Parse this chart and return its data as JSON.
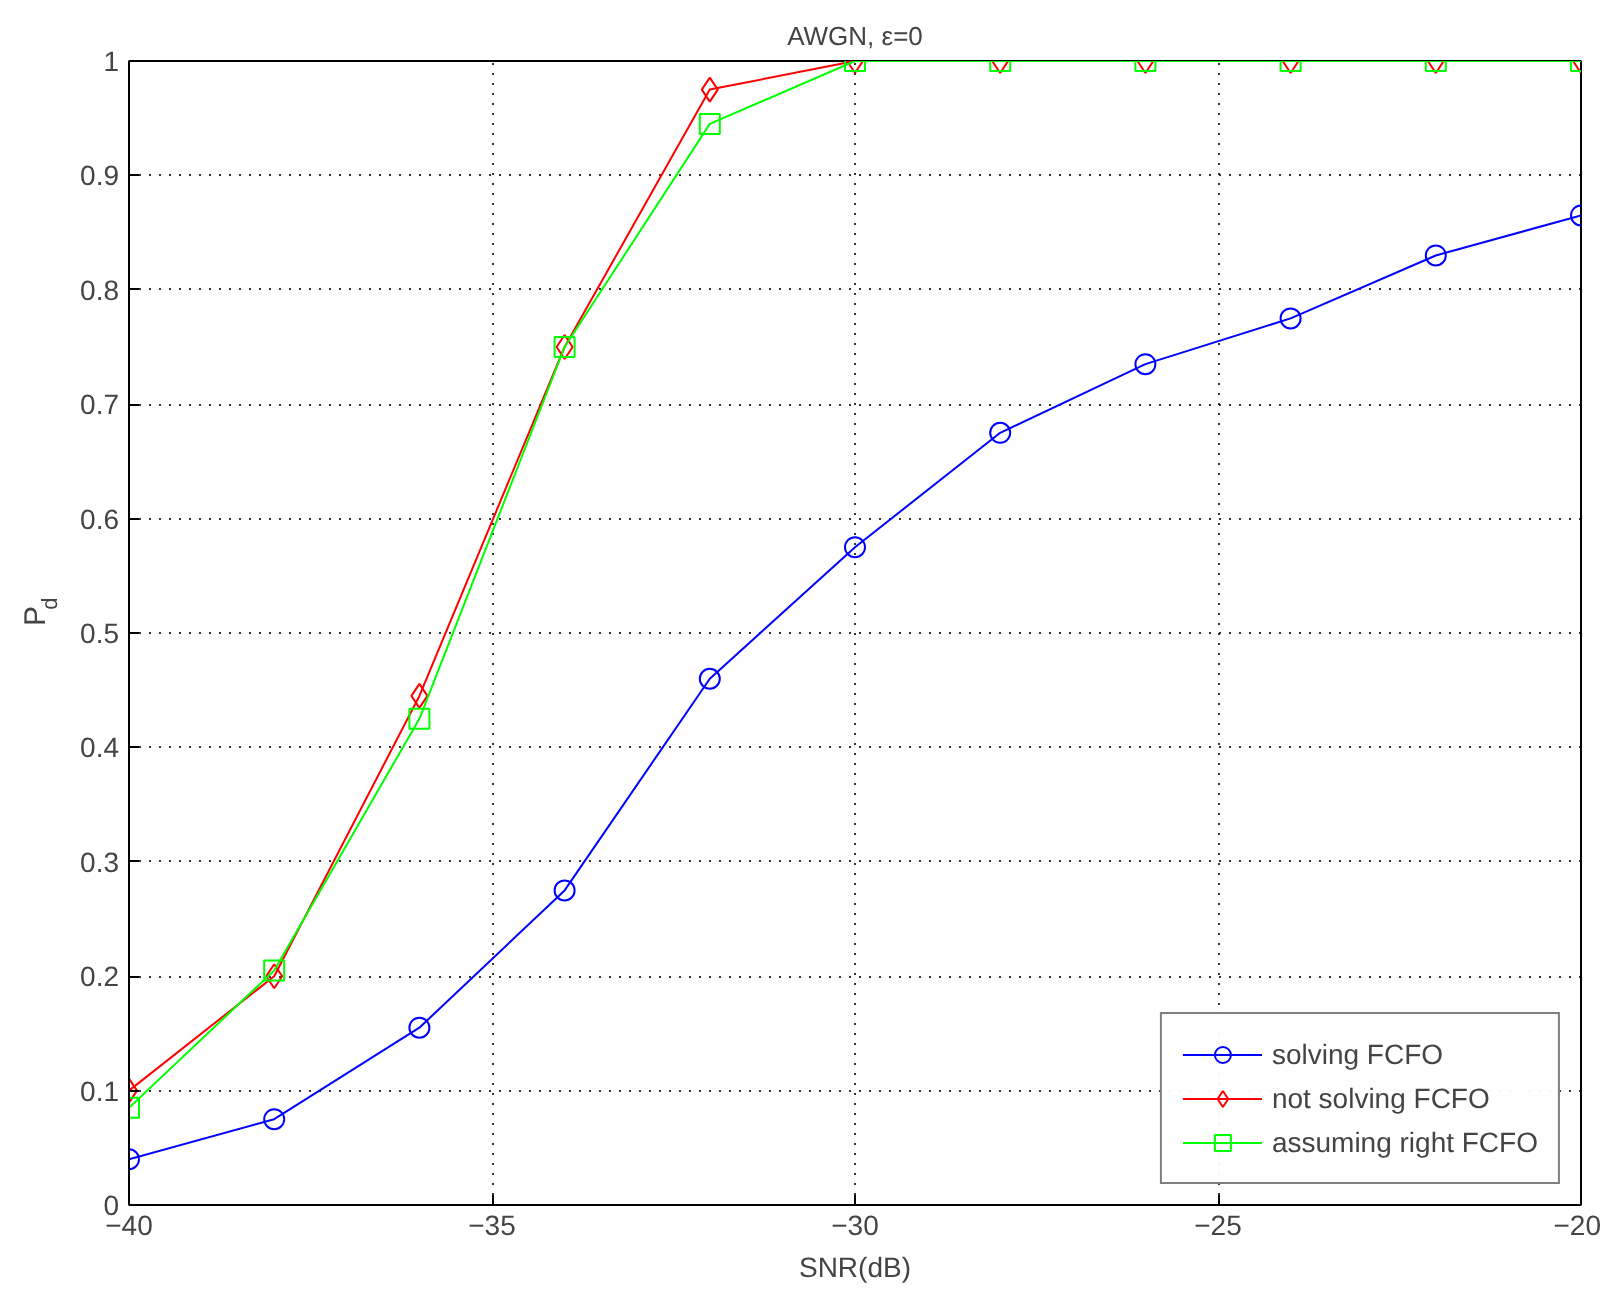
{
  "chart_data": {
    "type": "line",
    "title": "AWGN, ε=0",
    "xlabel": "SNR(dB)",
    "ylabel": "P$_{d}$",
    "x": [
      -40,
      -38,
      -36,
      -34,
      -32,
      -30,
      -28,
      -26,
      -24,
      -22,
      -20
    ],
    "series": [
      {
        "name": "solving FCFO",
        "color": "#0000ff",
        "marker": "circle",
        "values": [
          0.04,
          0.075,
          0.155,
          0.275,
          0.46,
          0.575,
          0.675,
          0.735,
          0.775,
          0.83,
          0.865
        ]
      },
      {
        "name": "not solving FCFO",
        "color": "#ff0000",
        "marker": "diamond",
        "values": [
          0.1,
          0.2,
          0.445,
          0.75,
          0.975,
          1,
          1,
          1,
          1,
          1,
          1
        ]
      },
      {
        "name": "assuming right FCFO",
        "color": "#00ff00",
        "marker": "square",
        "values": [
          0.085,
          0.205,
          0.425,
          0.75,
          0.945,
          1,
          1,
          1,
          1,
          1,
          1
        ]
      }
    ],
    "xlim": [
      -40,
      -20
    ],
    "xticks": [
      {
        "value": -40,
        "label": "−40"
      },
      {
        "value": -35,
        "label": "−35"
      },
      {
        "value": -30,
        "label": "−30"
      },
      {
        "value": -25,
        "label": "−25"
      },
      {
        "value": -20,
        "label": "−20"
      }
    ],
    "ylim": [
      0,
      1
    ],
    "yticks": [
      0,
      0.1,
      0.2,
      0.3,
      0.4,
      0.5,
      0.6,
      0.7,
      0.8,
      0.9,
      1
    ],
    "grid": true,
    "legend": "bottom right",
    "line_style": "solid"
  }
}
